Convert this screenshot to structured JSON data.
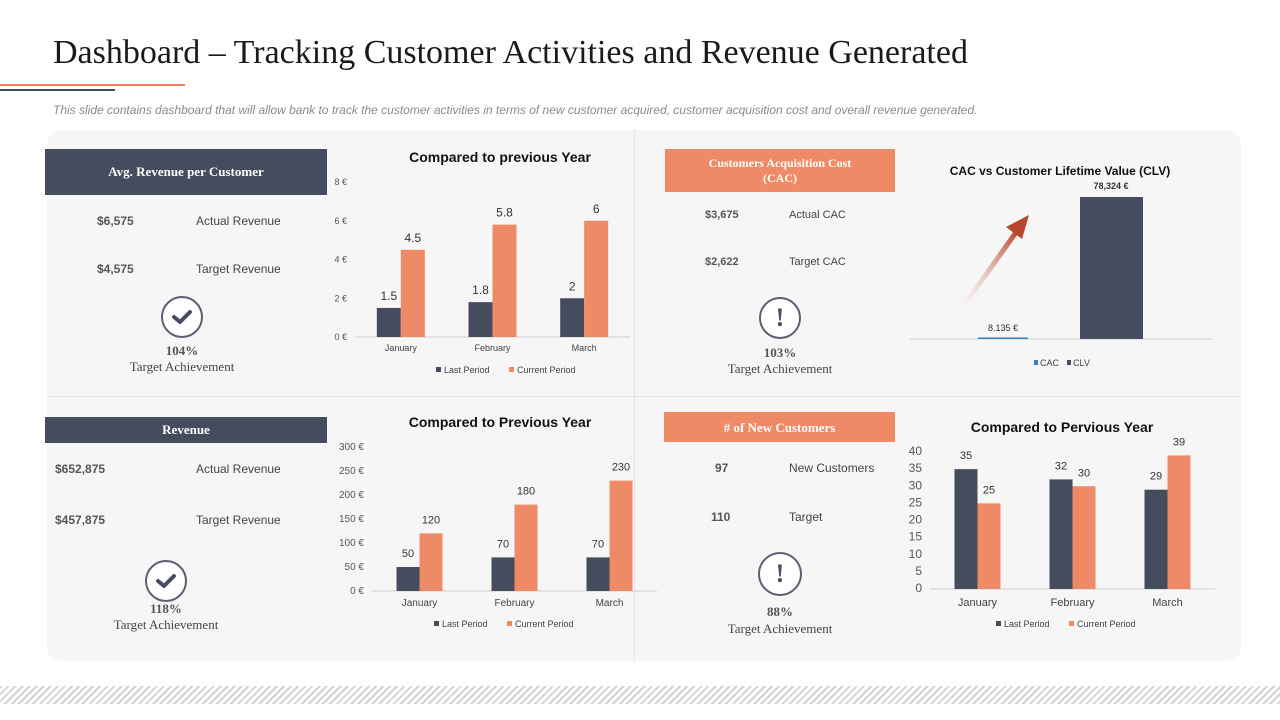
{
  "title": "Dashboard – Tracking Customer Activities and Revenue Generated",
  "subtitle": "This slide contains dashboard that will allow bank to track the customer activities in terms of new customer acquired,  customer acquisition cost and overall revenue  generated.",
  "colors": {
    "dark": "#454c5e",
    "orange": "#ef8a66",
    "cac_line": "#3b7dc4"
  },
  "arpc": {
    "header": "Avg. Revenue per Customer",
    "actual_value": "$6,575",
    "actual_label": "Actual Revenue",
    "target_value": "$4,575",
    "target_label": "Target Revenue",
    "icon": "checkmark-icon",
    "percent": "104%",
    "achievement_label": "Target Achievement"
  },
  "cac": {
    "header": "Customers Acquisition Cost (CAC)",
    "actual_value": "$3,675",
    "actual_label": "Actual CAC",
    "target_value": "$2,622",
    "target_label": "Target CAC",
    "icon": "exclamation-icon",
    "icon_glyph": "!",
    "percent": "103%",
    "achievement_label": "Target Achievement"
  },
  "revenue": {
    "header": "Revenue",
    "actual_value": "$652,875",
    "actual_label": "Actual Revenue",
    "target_value": "$457,875",
    "target_label": "Target Revenue",
    "icon": "checkmark-icon",
    "percent": "118%",
    "achievement_label": "Target Achievement"
  },
  "new_customers": {
    "header": "# of New Customers",
    "actual_value": "97",
    "actual_label": "New Customers",
    "target_value": "110",
    "target_label": "Target",
    "icon": "exclamation-icon",
    "icon_glyph": "!",
    "percent": "88%",
    "achievement_label": "Target Achievement"
  },
  "chart_data": [
    {
      "id": "arpc_chart",
      "type": "bar",
      "title": "Compared to previous Year",
      "categories": [
        "January",
        "February",
        "March"
      ],
      "series": [
        {
          "name": "Last Period",
          "values": [
            1.5,
            1.8,
            2
          ]
        },
        {
          "name": "Current Period",
          "values": [
            4.5,
            5.8,
            6
          ]
        }
      ],
      "ylim": [
        0,
        8
      ],
      "yticks": [
        0,
        2,
        4,
        6,
        8
      ],
      "ytick_labels": [
        "0 €",
        "2 €",
        "4 €",
        "6 €",
        "8 €"
      ],
      "legend": "bottom",
      "grid": false
    },
    {
      "id": "clv_chart",
      "type": "bar",
      "title": "CAC vs Customer Lifetime Value (CLV)",
      "categories": [
        "CAC",
        "CLV"
      ],
      "values": [
        8.135,
        78324
      ],
      "value_labels": [
        "8.135 €",
        "78,324 €"
      ],
      "legend_entries": [
        "CAC",
        "CLV"
      ],
      "legend": "bottom",
      "grid": false
    },
    {
      "id": "revenue_chart",
      "type": "bar",
      "title": "Compared to Previous Year",
      "categories": [
        "January",
        "February",
        "March"
      ],
      "series": [
        {
          "name": "Last Period",
          "values": [
            50,
            70,
            70
          ]
        },
        {
          "name": "Current Period",
          "values": [
            120,
            180,
            230
          ]
        }
      ],
      "ylim": [
        0,
        300
      ],
      "yticks": [
        0,
        50,
        100,
        150,
        200,
        250,
        300
      ],
      "ytick_labels": [
        "0 €",
        "50 €",
        "100 €",
        "150 €",
        "200 €",
        "250 €",
        "300 €"
      ],
      "legend": "bottom",
      "grid": false
    },
    {
      "id": "customers_chart",
      "type": "bar",
      "title": "Compared to Pervious Year",
      "categories": [
        "January",
        "February",
        "March"
      ],
      "series": [
        {
          "name": "Last Period",
          "values": [
            35,
            32,
            29
          ]
        },
        {
          "name": "Current Period",
          "values": [
            25,
            30,
            39
          ]
        }
      ],
      "ylim": [
        0,
        40
      ],
      "yticks": [
        0,
        5,
        10,
        15,
        20,
        25,
        30,
        35,
        40
      ],
      "ytick_labels": [
        "0",
        "5",
        "10",
        "15",
        "20",
        "25",
        "30",
        "35",
        "40"
      ],
      "legend": "bottom",
      "grid": false
    }
  ]
}
